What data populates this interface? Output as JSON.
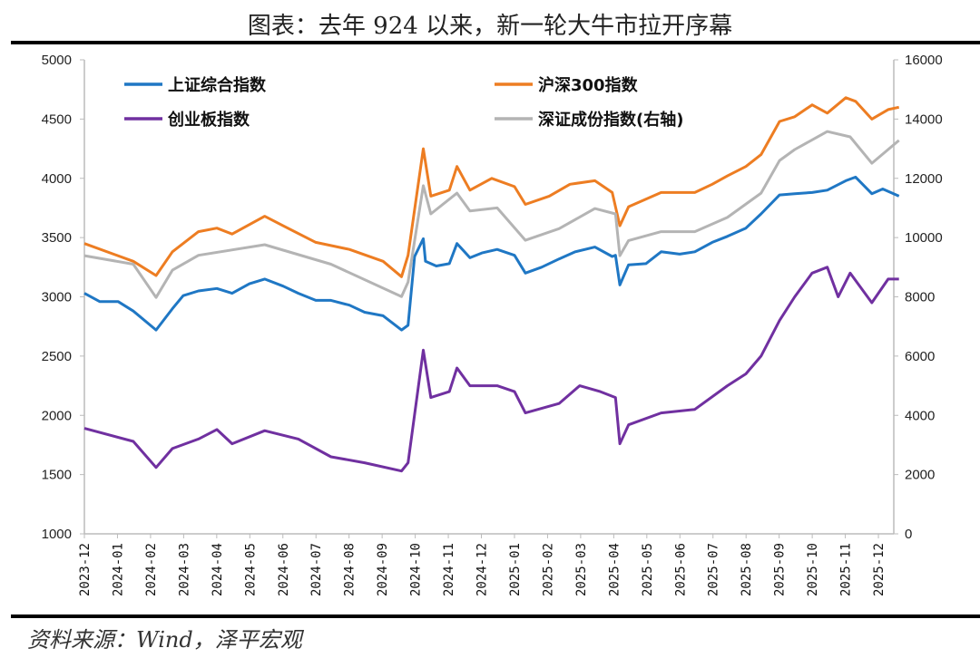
{
  "title": "图表：去年 924 以来，新一轮大牛市拉开序幕",
  "source": "资料来源：Wind，泽平宏观",
  "chart_data": {
    "type": "line",
    "title": "图表：去年 924 以来，新一轮大牛市拉开序幕",
    "ylim_left": [
      1000,
      5000
    ],
    "ylim_right": [
      0,
      16000
    ],
    "yticks_left": [
      "5000",
      "4500",
      "4000",
      "3500",
      "3000",
      "2500",
      "2000",
      "1500",
      "1000"
    ],
    "yticks_right": [
      "16000",
      "14000",
      "12000",
      "10000",
      "8000",
      "6000",
      "4000",
      "2000",
      "0"
    ],
    "xticks": [
      "2023-12",
      "2024-01",
      "2024-02",
      "2024-03",
      "2024-04",
      "2024-05",
      "2024-06",
      "2024-07",
      "2024-08",
      "2024-09",
      "2024-10",
      "2024-11",
      "2024-12",
      "2025-01",
      "2025-02",
      "2025-03",
      "2025-04",
      "2025-05",
      "2025-06",
      "2025-07",
      "2025-08",
      "2025-09",
      "2025-10",
      "2025-11",
      "2025-12"
    ],
    "grid": false,
    "legend": "top-left",
    "series": [
      {
        "name": "上证综合指数",
        "color": "#1f77c4",
        "axis": "left",
        "x": [
          "2023-12-01",
          "2023-12-15",
          "2024-01-01",
          "2024-01-15",
          "2024-02-05",
          "2024-02-20",
          "2024-03-01",
          "2024-03-15",
          "2024-04-01",
          "2024-04-15",
          "2024-05-01",
          "2024-05-15",
          "2024-06-01",
          "2024-06-15",
          "2024-07-01",
          "2024-07-15",
          "2024-08-01",
          "2024-08-15",
          "2024-09-01",
          "2024-09-18",
          "2024-09-24",
          "2024-09-30",
          "2024-10-08",
          "2024-10-10",
          "2024-10-20",
          "2024-11-01",
          "2024-11-08",
          "2024-11-20",
          "2024-12-01",
          "2024-12-15",
          "2024-12-31",
          "2025-01-10",
          "2025-01-25",
          "2025-02-10",
          "2025-02-25",
          "2025-03-15",
          "2025-03-31",
          "2025-04-03",
          "2025-04-07",
          "2025-04-15",
          "2025-05-01",
          "2025-05-15",
          "2025-06-01",
          "2025-06-15",
          "2025-07-01",
          "2025-07-15",
          "2025-08-01",
          "2025-08-15",
          "2025-09-01",
          "2025-09-15",
          "2025-10-01",
          "2025-10-15",
          "2025-11-01",
          "2025-11-10",
          "2025-11-25",
          "2025-12-05",
          "2025-12-20"
        ],
        "y": [
          3030,
          2960,
          2960,
          2880,
          2720,
          2900,
          3010,
          3050,
          3070,
          3030,
          3110,
          3150,
          3090,
          3030,
          2970,
          2970,
          2930,
          2870,
          2840,
          2720,
          2760,
          3340,
          3490,
          3300,
          3260,
          3280,
          3450,
          3330,
          3370,
          3400,
          3350,
          3200,
          3250,
          3320,
          3380,
          3420,
          3340,
          3350,
          3100,
          3270,
          3280,
          3380,
          3360,
          3380,
          3460,
          3510,
          3580,
          3700,
          3860,
          3870,
          3880,
          3900,
          3980,
          4010,
          3870,
          3910,
          3850
        ]
      },
      {
        "name": "沪深300指数",
        "color": "#ed7d22",
        "axis": "left",
        "x": [
          "2023-12-01",
          "2024-01-15",
          "2024-02-05",
          "2024-02-20",
          "2024-03-15",
          "2024-04-01",
          "2024-04-15",
          "2024-05-15",
          "2024-06-01",
          "2024-07-01",
          "2024-08-01",
          "2024-09-01",
          "2024-09-18",
          "2024-09-24",
          "2024-10-08",
          "2024-10-15",
          "2024-11-01",
          "2024-11-08",
          "2024-11-20",
          "2024-12-10",
          "2024-12-31",
          "2025-01-10",
          "2025-02-01",
          "2025-02-20",
          "2025-03-15",
          "2025-03-31",
          "2025-04-07",
          "2025-04-15",
          "2025-05-15",
          "2025-06-15",
          "2025-07-01",
          "2025-07-15",
          "2025-08-01",
          "2025-08-15",
          "2025-09-01",
          "2025-09-15",
          "2025-10-01",
          "2025-10-15",
          "2025-11-01",
          "2025-11-10",
          "2025-11-25",
          "2025-12-10",
          "2025-12-20"
        ],
        "y": [
          3450,
          3300,
          3180,
          3380,
          3550,
          3580,
          3530,
          3680,
          3600,
          3460,
          3400,
          3300,
          3170,
          3350,
          4250,
          3850,
          3900,
          4100,
          3900,
          4000,
          3930,
          3780,
          3850,
          3950,
          3980,
          3880,
          3600,
          3760,
          3880,
          3880,
          3950,
          4020,
          4100,
          4200,
          4480,
          4520,
          4620,
          4550,
          4680,
          4650,
          4500,
          4580,
          4600
        ]
      },
      {
        "name": "创业板指数",
        "color": "#7030a0",
        "axis": "left",
        "x": [
          "2023-12-01",
          "2024-01-15",
          "2024-02-05",
          "2024-02-20",
          "2024-03-15",
          "2024-04-01",
          "2024-04-15",
          "2024-05-15",
          "2024-06-15",
          "2024-07-15",
          "2024-08-15",
          "2024-09-18",
          "2024-09-24",
          "2024-10-08",
          "2024-10-15",
          "2024-11-01",
          "2024-11-08",
          "2024-11-20",
          "2024-12-15",
          "2024-12-31",
          "2025-01-10",
          "2025-02-10",
          "2025-03-01",
          "2025-03-20",
          "2025-04-03",
          "2025-04-07",
          "2025-04-15",
          "2025-05-15",
          "2025-06-15",
          "2025-07-15",
          "2025-08-01",
          "2025-08-15",
          "2025-09-01",
          "2025-09-15",
          "2025-10-01",
          "2025-10-15",
          "2025-10-25",
          "2025-11-05",
          "2025-11-25",
          "2025-12-10",
          "2025-12-20"
        ],
        "y": [
          1890,
          1780,
          1560,
          1720,
          1800,
          1880,
          1760,
          1870,
          1800,
          1650,
          1600,
          1530,
          1600,
          2550,
          2150,
          2200,
          2400,
          2250,
          2250,
          2200,
          2020,
          2100,
          2250,
          2200,
          2150,
          1760,
          1920,
          2020,
          2050,
          2250,
          2350,
          2500,
          2800,
          3000,
          3200,
          3250,
          3000,
          3200,
          2950,
          3150,
          3150
        ]
      },
      {
        "name": "深证成份指数(右轴)",
        "color": "#b4b4b4",
        "axis": "right",
        "x": [
          "2023-12-01",
          "2024-01-15",
          "2024-02-05",
          "2024-02-20",
          "2024-03-15",
          "2024-05-15",
          "2024-07-15",
          "2024-09-18",
          "2024-09-24",
          "2024-10-08",
          "2024-10-15",
          "2024-11-08",
          "2024-11-20",
          "2024-12-15",
          "2025-01-10",
          "2025-02-10",
          "2025-03-15",
          "2025-04-03",
          "2025-04-07",
          "2025-04-15",
          "2025-05-15",
          "2025-06-15",
          "2025-07-15",
          "2025-08-15",
          "2025-09-01",
          "2025-09-15",
          "2025-10-15",
          "2025-11-05",
          "2025-11-25",
          "2025-12-20"
        ],
        "y": [
          9390,
          9100,
          7980,
          8900,
          9400,
          9760,
          9100,
          8010,
          8500,
          11750,
          10800,
          11500,
          10900,
          11000,
          9910,
          10300,
          10980,
          10800,
          9390,
          9900,
          10200,
          10200,
          10680,
          11500,
          12600,
          12970,
          13580,
          13400,
          12510,
          13280
        ]
      }
    ]
  }
}
